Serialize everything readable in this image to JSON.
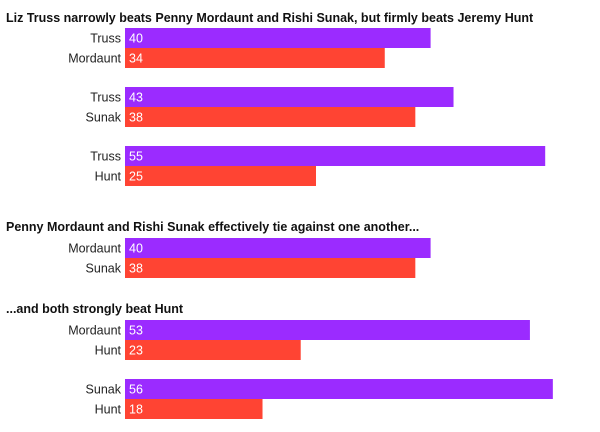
{
  "chart_data": {
    "type": "bar",
    "orientation": "horizontal",
    "grid": false,
    "xlim": [
      0,
      59
    ],
    "colors": {
      "first": "#9b2bff",
      "second": "#ff4433"
    },
    "sections": [
      {
        "title": "Liz Truss narrowly beats Penny Mordaunt and Rishi Sunak, but firmly beats Jeremy Hunt",
        "groups": [
          {
            "bars": [
              {
                "label": "Truss",
                "value": 40
              },
              {
                "label": "Mordaunt",
                "value": 34
              }
            ]
          },
          {
            "bars": [
              {
                "label": "Truss",
                "value": 43
              },
              {
                "label": "Sunak",
                "value": 38
              }
            ]
          },
          {
            "bars": [
              {
                "label": "Truss",
                "value": 55
              },
              {
                "label": "Hunt",
                "value": 25
              }
            ]
          }
        ]
      },
      {
        "title": "Penny Mordaunt and Rishi Sunak effectively tie against one another...",
        "groups": [
          {
            "bars": [
              {
                "label": "Mordaunt",
                "value": 40
              },
              {
                "label": "Sunak",
                "value": 38
              }
            ]
          }
        ]
      },
      {
        "title": "...and both strongly beat Hunt",
        "groups": [
          {
            "bars": [
              {
                "label": "Mordaunt",
                "value": 53
              },
              {
                "label": "Hunt",
                "value": 23
              }
            ]
          },
          {
            "bars": [
              {
                "label": "Sunak",
                "value": 56
              },
              {
                "label": "Hunt",
                "value": 18
              }
            ]
          }
        ]
      }
    ]
  }
}
